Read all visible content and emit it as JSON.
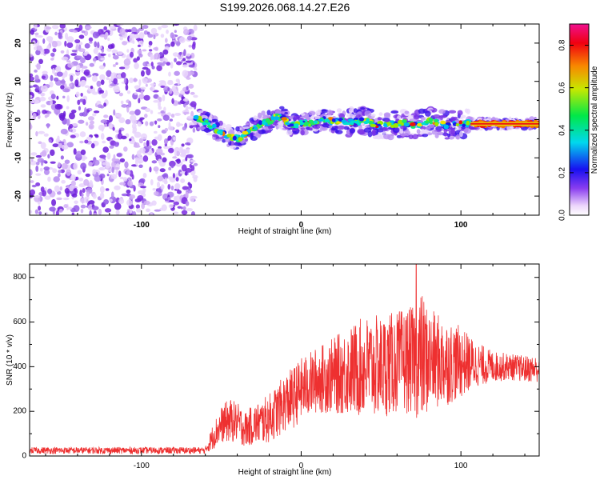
{
  "title": "S199.2026.068.14.27.E26",
  "chart_data": [
    {
      "type": "heatmap",
      "title": "S199.2026.068.14.27.E26",
      "xlabel": "Height of straight line (km)",
      "ylabel": "Frequency (Hz)",
      "xlim": [
        -170,
        149
      ],
      "ylim": [
        -25,
        25
      ],
      "xticks": [
        -100,
        0,
        100
      ],
      "yticks": [
        -20,
        -10,
        0,
        10,
        20
      ],
      "noise_region_x": [
        -170,
        -67
      ],
      "signal_track": {
        "x": [
          -66,
          -60,
          -55,
          -50,
          -45,
          -40,
          -35,
          -30,
          -25,
          -20,
          -16,
          -12,
          -8,
          -4,
          0,
          5,
          10,
          15,
          20,
          25,
          30,
          35,
          40,
          45,
          50,
          55,
          60,
          65,
          70,
          75,
          80,
          85,
          90,
          95,
          100,
          105,
          110,
          115,
          120,
          125,
          130,
          135,
          140,
          145,
          149
        ],
        "freq": [
          0.5,
          -0.5,
          -2.0,
          -3.5,
          -4.5,
          -5.0,
          -4.0,
          -2.5,
          -1.0,
          -0.5,
          0.8,
          0.5,
          -1.0,
          -1.5,
          -0.8,
          -1.0,
          -0.5,
          0.0,
          -0.5,
          -0.3,
          -0.8,
          -0.5,
          -0.3,
          -1.0,
          -1.5,
          -1.2,
          -1.0,
          -0.8,
          -1.5,
          -1.0,
          -0.5,
          -0.8,
          -1.5,
          -1.2,
          -1.3,
          -1.0,
          -1.1,
          -1.1,
          -1.1,
          -1.1,
          -1.1,
          -1.1,
          -1.1,
          -1.1,
          -1.1
        ]
      },
      "colorbar": {
        "label": "Normalized spectral amplitude",
        "range": [
          0,
          0.9
        ],
        "ticks": [
          0.0,
          0.2,
          0.4,
          0.6,
          0.8
        ],
        "tick_labels": [
          "0.0",
          "0.2",
          "0.4",
          "0.6",
          "0.8"
        ]
      }
    },
    {
      "type": "line",
      "xlabel": "Height of straight line (km)",
      "ylabel": "SNR (10 * v/v)",
      "xlim": [
        -170,
        149
      ],
      "ylim": [
        0,
        860
      ],
      "xticks": [
        -100,
        0,
        100
      ],
      "yticks": [
        0,
        200,
        400,
        600,
        800
      ],
      "color": "#ee3030",
      "series": [
        {
          "name": "SNR",
          "envelope": {
            "x": [
              -170,
              -60,
              -55,
              -50,
              -45,
              -40,
              -35,
              -30,
              -25,
              -20,
              -15,
              -10,
              -5,
              0,
              10,
              20,
              30,
              40,
              50,
              60,
              70,
              75,
              80,
              90,
              100,
              110,
              120,
              130,
              140,
              149
            ],
            "center": [
              25,
              25,
              90,
              140,
              160,
              150,
              120,
              140,
              150,
              170,
              200,
              240,
              260,
              300,
              340,
              360,
              380,
              400,
              400,
              420,
              430,
              440,
              430,
              420,
              420,
              410,
              400,
              400,
              390,
              390
            ],
            "spread": [
              15,
              15,
              60,
              80,
              100,
              90,
              80,
              90,
              100,
              110,
              120,
              130,
              140,
              140,
              150,
              170,
              200,
              230,
              230,
              230,
              240,
              300,
              230,
              200,
              160,
              100,
              70,
              60,
              60,
              60
            ]
          },
          "peak_max": 860,
          "peak_x": 72
        }
      ]
    }
  ]
}
